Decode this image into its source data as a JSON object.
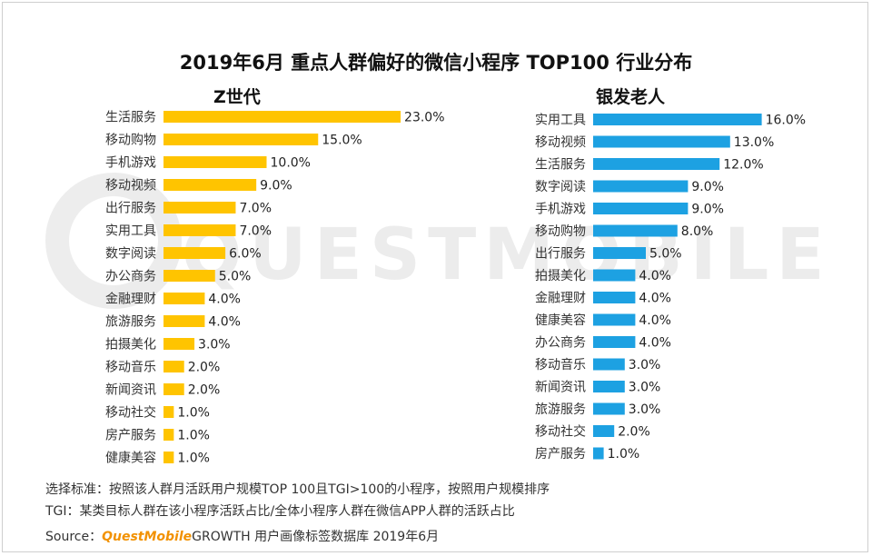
{
  "title": "2019年6月 重点人群偏好的微信小程序 TOP100 行业分布",
  "colors": {
    "z_bar": "#FFC400",
    "silver_bar": "#1DA1E2"
  },
  "chart_data": [
    {
      "type": "bar",
      "orientation": "horizontal",
      "title": "Z世代",
      "categories": [
        "生活服务",
        "移动购物",
        "手机游戏",
        "移动视频",
        "出行服务",
        "实用工具",
        "数字阅读",
        "办公商务",
        "金融理财",
        "旅游服务",
        "拍摄美化",
        "移动音乐",
        "新闻资讯",
        "移动社交",
        "房产服务",
        "健康美容"
      ],
      "values": [
        23.0,
        15.0,
        10.0,
        9.0,
        7.0,
        7.0,
        6.0,
        5.0,
        4.0,
        4.0,
        3.0,
        2.0,
        2.0,
        1.0,
        1.0,
        1.0
      ],
      "value_labels": [
        "23.0%",
        "15.0%",
        "10.0%",
        "9.0%",
        "7.0%",
        "7.0%",
        "6.0%",
        "5.0%",
        "4.0%",
        "4.0%",
        "3.0%",
        "2.0%",
        "2.0%",
        "1.0%",
        "1.0%",
        "1.0%"
      ],
      "unit": "%"
    },
    {
      "type": "bar",
      "orientation": "horizontal",
      "title": "银发老人",
      "categories": [
        "实用工具",
        "移动视频",
        "生活服务",
        "数字阅读",
        "手机游戏",
        "移动购物",
        "出行服务",
        "拍摄美化",
        "金融理财",
        "健康美容",
        "办公商务",
        "移动音乐",
        "新闻资讯",
        "旅游服务",
        "移动社交",
        "房产服务"
      ],
      "values": [
        16.0,
        13.0,
        12.0,
        9.0,
        9.0,
        8.0,
        5.0,
        4.0,
        4.0,
        4.0,
        4.0,
        3.0,
        3.0,
        3.0,
        2.0,
        1.0
      ],
      "value_labels": [
        "16.0%",
        "13.0%",
        "12.0%",
        "9.0%",
        "9.0%",
        "8.0%",
        "5.0%",
        "4.0%",
        "4.0%",
        "4.0%",
        "4.0%",
        "3.0%",
        "3.0%",
        "3.0%",
        "2.0%",
        "1.0%"
      ],
      "unit": "%"
    }
  ],
  "notes": {
    "selection": "选择标准：按照该人群月活跃用户规模TOP 100且TGI>100的小程序，按照用户规模排序",
    "tgi": "TGI：某类目标人群在该小程序活跃占比/全体小程序人群在微信APP人群的活跃占比"
  },
  "source": {
    "label": "Source：",
    "brand": "QuestMobile",
    "rest": "GROWTH 用户画像标签数据库  2019年6月"
  },
  "watermark": "QUESTMOBILE"
}
